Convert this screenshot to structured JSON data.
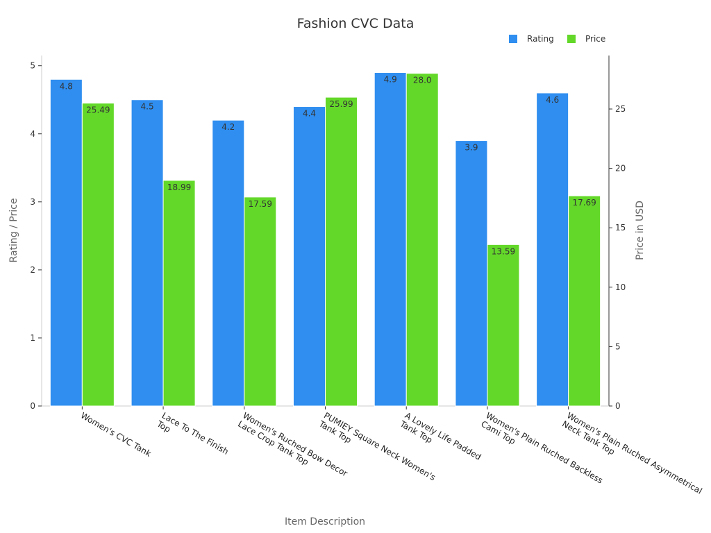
{
  "chart_data": {
    "type": "bar",
    "title": "Fashion CVC Data",
    "xlabel": "Item Description",
    "ylabel": "Rating / Price",
    "y2label": "Price in USD",
    "categories": [
      "Women's CVC Tank",
      "Lace To The Finish Top",
      "Women's Ruched Bow Decor Lace Crop Tank Top",
      "PUMIEY Square Neck Women's Tank Top",
      "A Lovely Life Padded Tank Top",
      "Women's Plain Ruched Backless Cami Top",
      "Women's Plain Ruched Asymmetrical Neck Tank Top"
    ],
    "category_lines": [
      [
        "Women's CVC Tank"
      ],
      [
        "Lace To The Finish",
        "Top"
      ],
      [
        "Women's Ruched Bow Decor",
        "Lace Crop Tank Top"
      ],
      [
        "PUMIEY Square Neck Women's",
        "Tank Top"
      ],
      [
        "A Lovely Life Padded",
        "Tank Top"
      ],
      [
        "Women's Plain Ruched Backless",
        "Cami Top"
      ],
      [
        "Women's Plain Ruched Asymmetrical",
        "Neck Tank Top"
      ]
    ],
    "series": [
      {
        "name": "Rating",
        "axis": "left",
        "color": "#2f8ef0",
        "values": [
          4.8,
          4.5,
          4.2,
          4.4,
          4.9,
          3.9,
          4.6
        ],
        "labels": [
          "4.8",
          "4.5",
          "4.2",
          "4.4",
          "4.9",
          "3.9",
          "4.6"
        ]
      },
      {
        "name": "Price",
        "axis": "right",
        "color": "#63d829",
        "values": [
          25.49,
          18.99,
          17.59,
          25.99,
          28.0,
          13.59,
          17.69
        ],
        "labels": [
          "25.49",
          "18.99",
          "17.59",
          "25.99",
          "28.0",
          "13.59",
          "17.69"
        ]
      }
    ],
    "ylim": [
      0,
      5.15
    ],
    "y_ticks": [
      0,
      1,
      2,
      3,
      4,
      5
    ],
    "y2lim": [
      0,
      29.5
    ],
    "y2_ticks": [
      0,
      5,
      10,
      15,
      20,
      25
    ],
    "legend_position": "top-right",
    "grid": false
  }
}
